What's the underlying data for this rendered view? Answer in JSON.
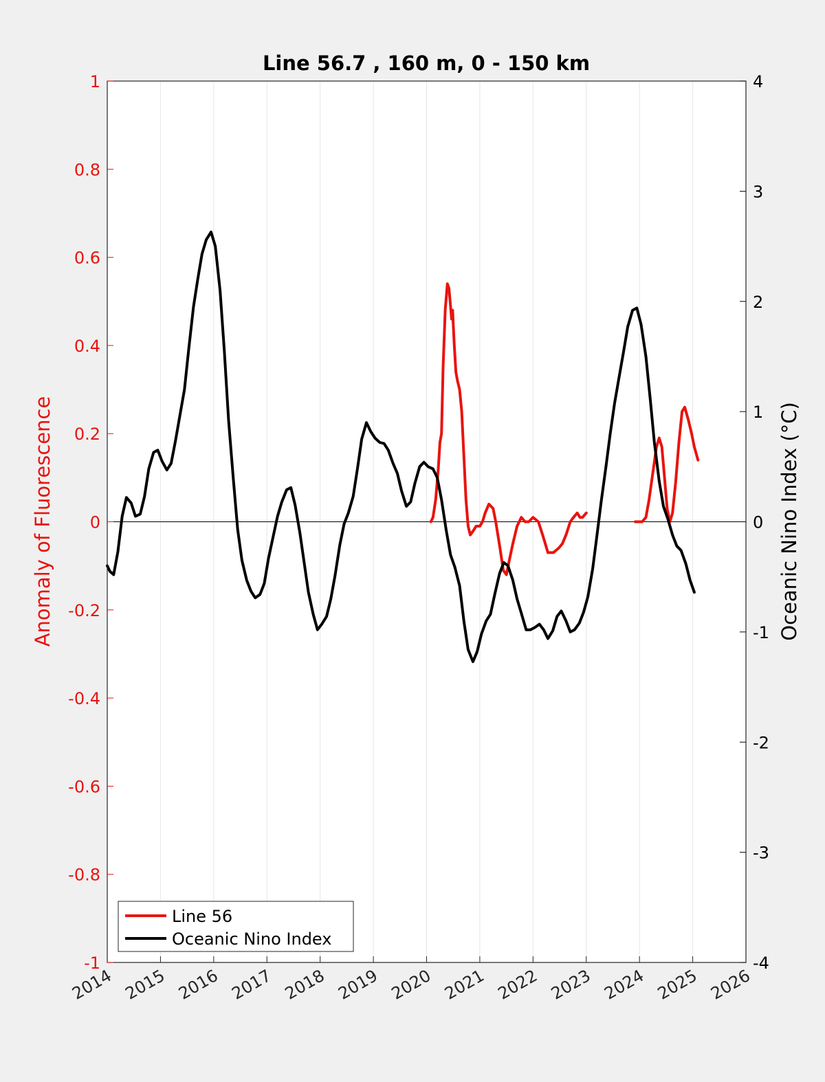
{
  "chart_data": {
    "type": "line",
    "title": "Line 56.7 , 160 m, 0 - 150 km",
    "xlabel": "",
    "ylabel_left": "Anomaly of Fluorescence",
    "ylabel_right": "Oceanic Nino Index (°C)",
    "xlim": [
      2014,
      2026
    ],
    "ylim_left": [
      -1,
      1
    ],
    "ylim_right": [
      -4,
      4
    ],
    "x_ticks": [
      "2014",
      "2015",
      "2016",
      "2017",
      "2018",
      "2019",
      "2020",
      "2021",
      "2022",
      "2023",
      "2024",
      "2025",
      "2026"
    ],
    "y_left_ticks": [
      "-1",
      "-0.8",
      "-0.6",
      "-0.4",
      "-0.2",
      "0",
      "0.2",
      "0.4",
      "0.6",
      "0.8",
      "1"
    ],
    "y_right_ticks": [
      "-4",
      "-3",
      "-2",
      "-1",
      "0",
      "1",
      "2",
      "3",
      "4"
    ],
    "grid": "vertical",
    "legend_position": "bottom-left",
    "colors": {
      "line56": "#e8140f",
      "oni": "#000000",
      "left_axis": "#e8140f",
      "right_axis": "#000000",
      "background": "#f0f0f0"
    },
    "series": [
      {
        "name": "Line 56",
        "axis": "left",
        "color": "#e8140f",
        "segments": [
          [
            [
              2020.08,
              0.0
            ],
            [
              2020.12,
              0.01
            ],
            [
              2020.17,
              0.05
            ],
            [
              2020.22,
              0.12
            ],
            [
              2020.25,
              0.18
            ],
            [
              2020.28,
              0.2
            ],
            [
              2020.31,
              0.35
            ],
            [
              2020.35,
              0.48
            ],
            [
              2020.39,
              0.54
            ],
            [
              2020.42,
              0.53
            ],
            [
              2020.45,
              0.49
            ],
            [
              2020.47,
              0.46
            ],
            [
              2020.49,
              0.48
            ],
            [
              2020.5,
              0.45
            ],
            [
              2020.52,
              0.4
            ],
            [
              2020.55,
              0.34
            ],
            [
              2020.58,
              0.32
            ],
            [
              2020.62,
              0.3
            ],
            [
              2020.66,
              0.25
            ],
            [
              2020.7,
              0.15
            ],
            [
              2020.74,
              0.05
            ],
            [
              2020.78,
              -0.01
            ],
            [
              2020.82,
              -0.03
            ],
            [
              2020.88,
              -0.02
            ],
            [
              2020.93,
              -0.01
            ],
            [
              2021.0,
              -0.01
            ],
            [
              2021.05,
              0.0
            ],
            [
              2021.1,
              0.02
            ],
            [
              2021.17,
              0.04
            ],
            [
              2021.25,
              0.03
            ],
            [
              2021.3,
              0.0
            ],
            [
              2021.38,
              -0.06
            ],
            [
              2021.44,
              -0.11
            ],
            [
              2021.5,
              -0.12
            ],
            [
              2021.55,
              -0.09
            ],
            [
              2021.62,
              -0.05
            ],
            [
              2021.7,
              -0.01
            ],
            [
              2021.78,
              0.01
            ],
            [
              2021.85,
              0.0
            ],
            [
              2021.92,
              0.0
            ],
            [
              2022.0,
              0.01
            ],
            [
              2022.1,
              0.0
            ],
            [
              2022.18,
              -0.03
            ],
            [
              2022.28,
              -0.07
            ],
            [
              2022.38,
              -0.07
            ],
            [
              2022.48,
              -0.06
            ],
            [
              2022.55,
              -0.05
            ],
            [
              2022.62,
              -0.03
            ],
            [
              2022.7,
              0.0
            ],
            [
              2022.76,
              0.01
            ],
            [
              2022.83,
              0.02
            ],
            [
              2022.88,
              0.01
            ],
            [
              2022.93,
              0.01
            ],
            [
              2023.0,
              0.02
            ]
          ],
          [
            [
              2023.92,
              0.0
            ],
            [
              2023.97,
              0.0
            ],
            [
              2024.05,
              0.0
            ],
            [
              2024.12,
              0.01
            ],
            [
              2024.18,
              0.05
            ],
            [
              2024.25,
              0.11
            ],
            [
              2024.32,
              0.17
            ],
            [
              2024.37,
              0.19
            ],
            [
              2024.42,
              0.17
            ],
            [
              2024.47,
              0.1
            ],
            [
              2024.52,
              0.03
            ],
            [
              2024.57,
              0.0
            ],
            [
              2024.62,
              0.02
            ],
            [
              2024.68,
              0.09
            ],
            [
              2024.74,
              0.18
            ],
            [
              2024.8,
              0.25
            ],
            [
              2024.85,
              0.26
            ],
            [
              2024.92,
              0.23
            ],
            [
              2024.98,
              0.2
            ],
            [
              2025.03,
              0.17
            ],
            [
              2025.1,
              0.14
            ]
          ]
        ]
      },
      {
        "name": "Oceanic Nino Index",
        "axis": "right",
        "color": "#000000",
        "points": [
          [
            2014.0,
            -0.4
          ],
          [
            2014.05,
            -0.45
          ],
          [
            2014.12,
            -0.48
          ],
          [
            2014.2,
            -0.27
          ],
          [
            2014.28,
            0.05
          ],
          [
            2014.36,
            0.22
          ],
          [
            2014.45,
            0.17
          ],
          [
            2014.53,
            0.05
          ],
          [
            2014.62,
            0.07
          ],
          [
            2014.7,
            0.23
          ],
          [
            2014.78,
            0.48
          ],
          [
            2014.87,
            0.63
          ],
          [
            2014.95,
            0.65
          ],
          [
            2015.03,
            0.55
          ],
          [
            2015.12,
            0.47
          ],
          [
            2015.2,
            0.53
          ],
          [
            2015.28,
            0.73
          ],
          [
            2015.37,
            0.98
          ],
          [
            2015.45,
            1.2
          ],
          [
            2015.53,
            1.56
          ],
          [
            2015.62,
            1.95
          ],
          [
            2015.7,
            2.2
          ],
          [
            2015.78,
            2.43
          ],
          [
            2015.86,
            2.56
          ],
          [
            2015.95,
            2.63
          ],
          [
            2016.03,
            2.5
          ],
          [
            2016.12,
            2.1
          ],
          [
            2016.2,
            1.55
          ],
          [
            2016.28,
            0.92
          ],
          [
            2016.37,
            0.38
          ],
          [
            2016.45,
            -0.07
          ],
          [
            2016.53,
            -0.35
          ],
          [
            2016.62,
            -0.53
          ],
          [
            2016.7,
            -0.63
          ],
          [
            2016.78,
            -0.69
          ],
          [
            2016.87,
            -0.66
          ],
          [
            2016.95,
            -0.56
          ],
          [
            2017.03,
            -0.33
          ],
          [
            2017.12,
            -0.13
          ],
          [
            2017.2,
            0.05
          ],
          [
            2017.28,
            0.18
          ],
          [
            2017.37,
            0.29
          ],
          [
            2017.45,
            0.31
          ],
          [
            2017.53,
            0.15
          ],
          [
            2017.62,
            -0.1
          ],
          [
            2017.7,
            -0.37
          ],
          [
            2017.78,
            -0.64
          ],
          [
            2017.87,
            -0.84
          ],
          [
            2017.95,
            -0.98
          ],
          [
            2018.03,
            -0.93
          ],
          [
            2018.12,
            -0.86
          ],
          [
            2018.2,
            -0.7
          ],
          [
            2018.28,
            -0.49
          ],
          [
            2018.37,
            -0.21
          ],
          [
            2018.45,
            -0.02
          ],
          [
            2018.53,
            0.08
          ],
          [
            2018.62,
            0.23
          ],
          [
            2018.7,
            0.48
          ],
          [
            2018.78,
            0.75
          ],
          [
            2018.87,
            0.9
          ],
          [
            2018.95,
            0.82
          ],
          [
            2019.03,
            0.76
          ],
          [
            2019.12,
            0.72
          ],
          [
            2019.2,
            0.71
          ],
          [
            2019.28,
            0.65
          ],
          [
            2019.37,
            0.53
          ],
          [
            2019.45,
            0.44
          ],
          [
            2019.53,
            0.28
          ],
          [
            2019.62,
            0.14
          ],
          [
            2019.7,
            0.18
          ],
          [
            2019.78,
            0.35
          ],
          [
            2019.87,
            0.5
          ],
          [
            2019.95,
            0.54
          ],
          [
            2020.03,
            0.5
          ],
          [
            2020.12,
            0.48
          ],
          [
            2020.2,
            0.4
          ],
          [
            2020.28,
            0.2
          ],
          [
            2020.37,
            -0.08
          ],
          [
            2020.45,
            -0.3
          ],
          [
            2020.53,
            -0.41
          ],
          [
            2020.62,
            -0.58
          ],
          [
            2020.7,
            -0.9
          ],
          [
            2020.78,
            -1.16
          ],
          [
            2020.87,
            -1.27
          ],
          [
            2020.95,
            -1.18
          ],
          [
            2021.03,
            -1.02
          ],
          [
            2021.12,
            -0.9
          ],
          [
            2021.2,
            -0.84
          ],
          [
            2021.28,
            -0.66
          ],
          [
            2021.37,
            -0.47
          ],
          [
            2021.45,
            -0.37
          ],
          [
            2021.53,
            -0.4
          ],
          [
            2021.62,
            -0.53
          ],
          [
            2021.7,
            -0.7
          ],
          [
            2021.78,
            -0.83
          ],
          [
            2021.87,
            -0.98
          ],
          [
            2021.95,
            -0.98
          ],
          [
            2022.03,
            -0.96
          ],
          [
            2022.12,
            -0.93
          ],
          [
            2022.2,
            -0.98
          ],
          [
            2022.28,
            -1.06
          ],
          [
            2022.37,
            -0.99
          ],
          [
            2022.45,
            -0.86
          ],
          [
            2022.53,
            -0.81
          ],
          [
            2022.62,
            -0.9
          ],
          [
            2022.7,
            -1.0
          ],
          [
            2022.78,
            -0.98
          ],
          [
            2022.87,
            -0.92
          ],
          [
            2022.95,
            -0.82
          ],
          [
            2023.03,
            -0.68
          ],
          [
            2023.12,
            -0.43
          ],
          [
            2023.2,
            -0.13
          ],
          [
            2023.28,
            0.18
          ],
          [
            2023.37,
            0.5
          ],
          [
            2023.45,
            0.8
          ],
          [
            2023.53,
            1.07
          ],
          [
            2023.62,
            1.32
          ],
          [
            2023.7,
            1.54
          ],
          [
            2023.78,
            1.77
          ],
          [
            2023.87,
            1.92
          ],
          [
            2023.95,
            1.94
          ],
          [
            2024.03,
            1.79
          ],
          [
            2024.12,
            1.5
          ],
          [
            2024.2,
            1.12
          ],
          [
            2024.28,
            0.72
          ],
          [
            2024.37,
            0.37
          ],
          [
            2024.45,
            0.14
          ],
          [
            2024.53,
            0.03
          ],
          [
            2024.62,
            -0.12
          ],
          [
            2024.7,
            -0.22
          ],
          [
            2024.78,
            -0.26
          ],
          [
            2024.87,
            -0.38
          ],
          [
            2024.95,
            -0.53
          ],
          [
            2025.03,
            -0.64
          ]
        ]
      }
    ]
  },
  "legend": {
    "items": [
      {
        "label": "Line 56",
        "color": "#e8140f"
      },
      {
        "label": "Oceanic Nino Index",
        "color": "#000000"
      }
    ]
  }
}
